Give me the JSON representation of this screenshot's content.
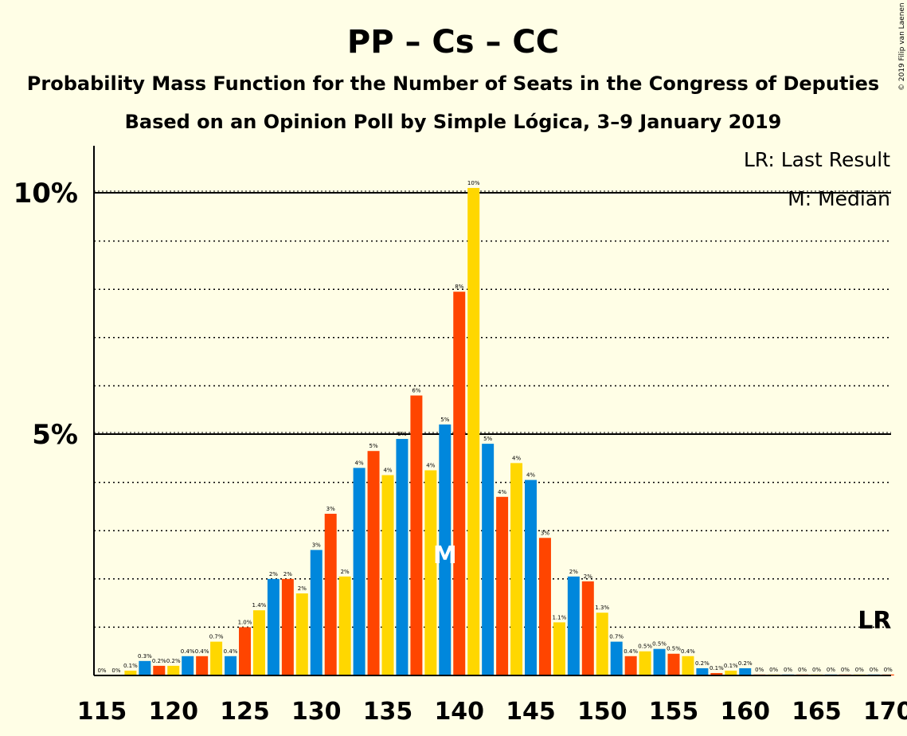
{
  "chart_data": {
    "type": "bar",
    "title": "PP – Cs – CC",
    "subtitle": "Probability Mass Function for the Number of Seats in the Congress of Deputies",
    "subtitle2": "Based on an Opinion Poll by Simple Lógica, 3–9 January 2019",
    "copyright": "© 2019 Filip van Laenen",
    "legend": {
      "last_result": "LR: Last Result",
      "median": "M: Median"
    },
    "lr_label": "LR",
    "median_label": "M",
    "median_seat": 139,
    "last_result_seat": 169,
    "xlim": [
      115,
      170
    ],
    "ylim": [
      0,
      11
    ],
    "x_ticks": [
      "115",
      "120",
      "125",
      "130",
      "135",
      "140",
      "145",
      "150",
      "155",
      "160",
      "165",
      "170"
    ],
    "y_ticks": [
      {
        "value": 5,
        "label": "5%"
      },
      {
        "value": 10,
        "label": "10%"
      }
    ],
    "colors": [
      "#0087DC",
      "#FF4500",
      "#FFD700"
    ],
    "seats": [
      115,
      116,
      117,
      118,
      119,
      120,
      121,
      122,
      123,
      124,
      125,
      126,
      127,
      128,
      129,
      130,
      131,
      132,
      133,
      134,
      135,
      136,
      137,
      138,
      139,
      140,
      141,
      142,
      143,
      144,
      145,
      146,
      147,
      148,
      149,
      150,
      151,
      152,
      153,
      154,
      155,
      156,
      157,
      158,
      159,
      160,
      161,
      162,
      163,
      164,
      165,
      166,
      167,
      168,
      169,
      170
    ],
    "values": [
      0,
      0,
      0.1,
      0.3,
      0.2,
      0.2,
      0.4,
      0.4,
      0.7,
      0.4,
      1.0,
      1.35,
      2,
      2,
      1.7,
      2.6,
      3.35,
      2.05,
      4.3,
      4.65,
      4.15,
      4.9,
      5.8,
      4.25,
      5.2,
      7.95,
      10.1,
      4.8,
      3.7,
      4.4,
      4.05,
      2.85,
      1.1,
      2.05,
      1.95,
      1.3,
      0.7,
      0.4,
      0.5,
      0.55,
      0.45,
      0.4,
      0.15,
      0.05,
      0.1,
      0.15,
      0.02,
      0.02,
      0.02,
      0.02,
      0.02,
      0.02,
      0.02,
      0.02,
      0.02,
      0.02
    ],
    "labels": [
      "0%",
      "0%",
      "0.1%",
      "0.3%",
      "0.2%",
      "0.2%",
      "0.4%",
      "0.4%",
      "0.7%",
      "0.4%",
      "1.0%",
      "1.4%",
      "2%",
      "2%",
      "2%",
      "3%",
      "3%",
      "2%",
      "4%",
      "5%",
      "4%",
      "5%",
      "6%",
      "4%",
      "5%",
      "8%",
      "10%",
      "5%",
      "4%",
      "4%",
      "4%",
      "3%",
      "1.1%",
      "2%",
      "2%",
      "1.3%",
      "0.7%",
      "0.4%",
      "0.5%",
      "0.5%",
      "0.5%",
      "0.4%",
      "0.2%",
      "0.1%",
      "0.1%",
      "0.2%",
      "0%",
      "0%",
      "0%",
      "0%",
      "0%",
      "0%",
      "0%",
      "0%",
      "0%",
      "0%"
    ]
  }
}
